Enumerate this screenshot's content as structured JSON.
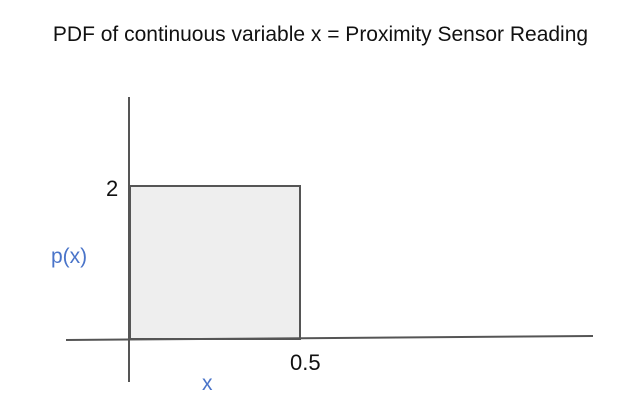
{
  "title": "PDF of continuous variable x = Proximity Sensor Reading",
  "axes": {
    "x_label": "x",
    "y_label": "p(x)",
    "x_tick": "0.5",
    "y_tick": "2"
  },
  "pdf": {
    "x_start": 0,
    "x_end": 0.5,
    "density": 2
  },
  "colors": {
    "axis_line": "#555555",
    "box_fill": "#eeeeee",
    "box_stroke": "#555555",
    "axis_label": "#4a74c9",
    "text": "#111111"
  }
}
